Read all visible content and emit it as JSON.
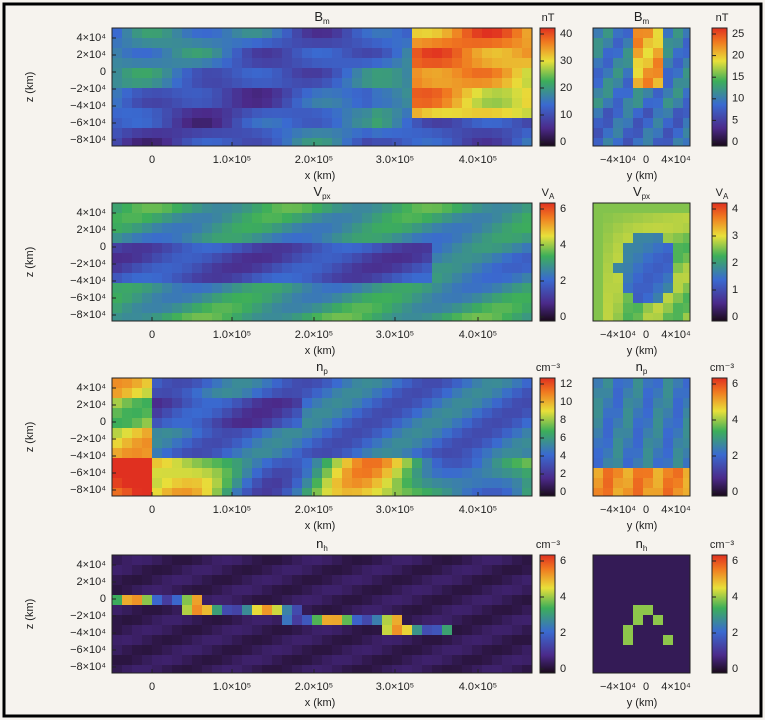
{
  "labels": {
    "x": "x (km)",
    "y": "y (km)",
    "z": "z (km)"
  },
  "z_ticks": [
    "4×10⁴",
    "2×10⁴",
    "0",
    "−2×10⁴",
    "−4×10⁴",
    "−6×10⁴",
    "−8×10⁴"
  ],
  "x_ticks_wide": [
    "0",
    "1.0×10⁵",
    "2.0×10⁵",
    "3.0×10⁵",
    "4.0×10⁵"
  ],
  "x_ticks_small": [
    "−4×10⁴",
    "0",
    "4×10⁴"
  ],
  "panels": [
    {
      "title": {
        "main": "B",
        "sub": "m"
      },
      "unit": {
        "main": "nT",
        "sub": ""
      },
      "wide_colorbar_ticks": [
        0,
        10,
        20,
        30,
        40
      ],
      "small_colorbar_ticks": [
        0,
        5,
        10,
        15,
        20,
        25
      ]
    },
    {
      "title": {
        "main": "V",
        "sub": "px"
      },
      "unit": {
        "main": "V",
        "sub": "A"
      },
      "wide_colorbar_ticks": [
        0,
        2,
        4,
        6
      ],
      "small_colorbar_ticks": [
        0,
        1,
        2,
        3,
        4
      ]
    },
    {
      "title": {
        "main": "n",
        "sub": "p"
      },
      "unit": {
        "main": "cm⁻³",
        "sub": ""
      },
      "wide_colorbar_ticks": [
        0,
        2,
        4,
        6,
        8,
        10,
        12
      ],
      "small_colorbar_ticks": [
        0,
        2,
        4,
        6
      ]
    },
    {
      "title": {
        "main": "n",
        "sub": "h"
      },
      "unit": {
        "main": "cm⁻³",
        "sub": ""
      },
      "wide_colorbar_ticks": [
        0,
        2,
        4,
        6
      ],
      "small_colorbar_ticks": [
        0,
        2,
        4,
        6
      ]
    }
  ]
}
